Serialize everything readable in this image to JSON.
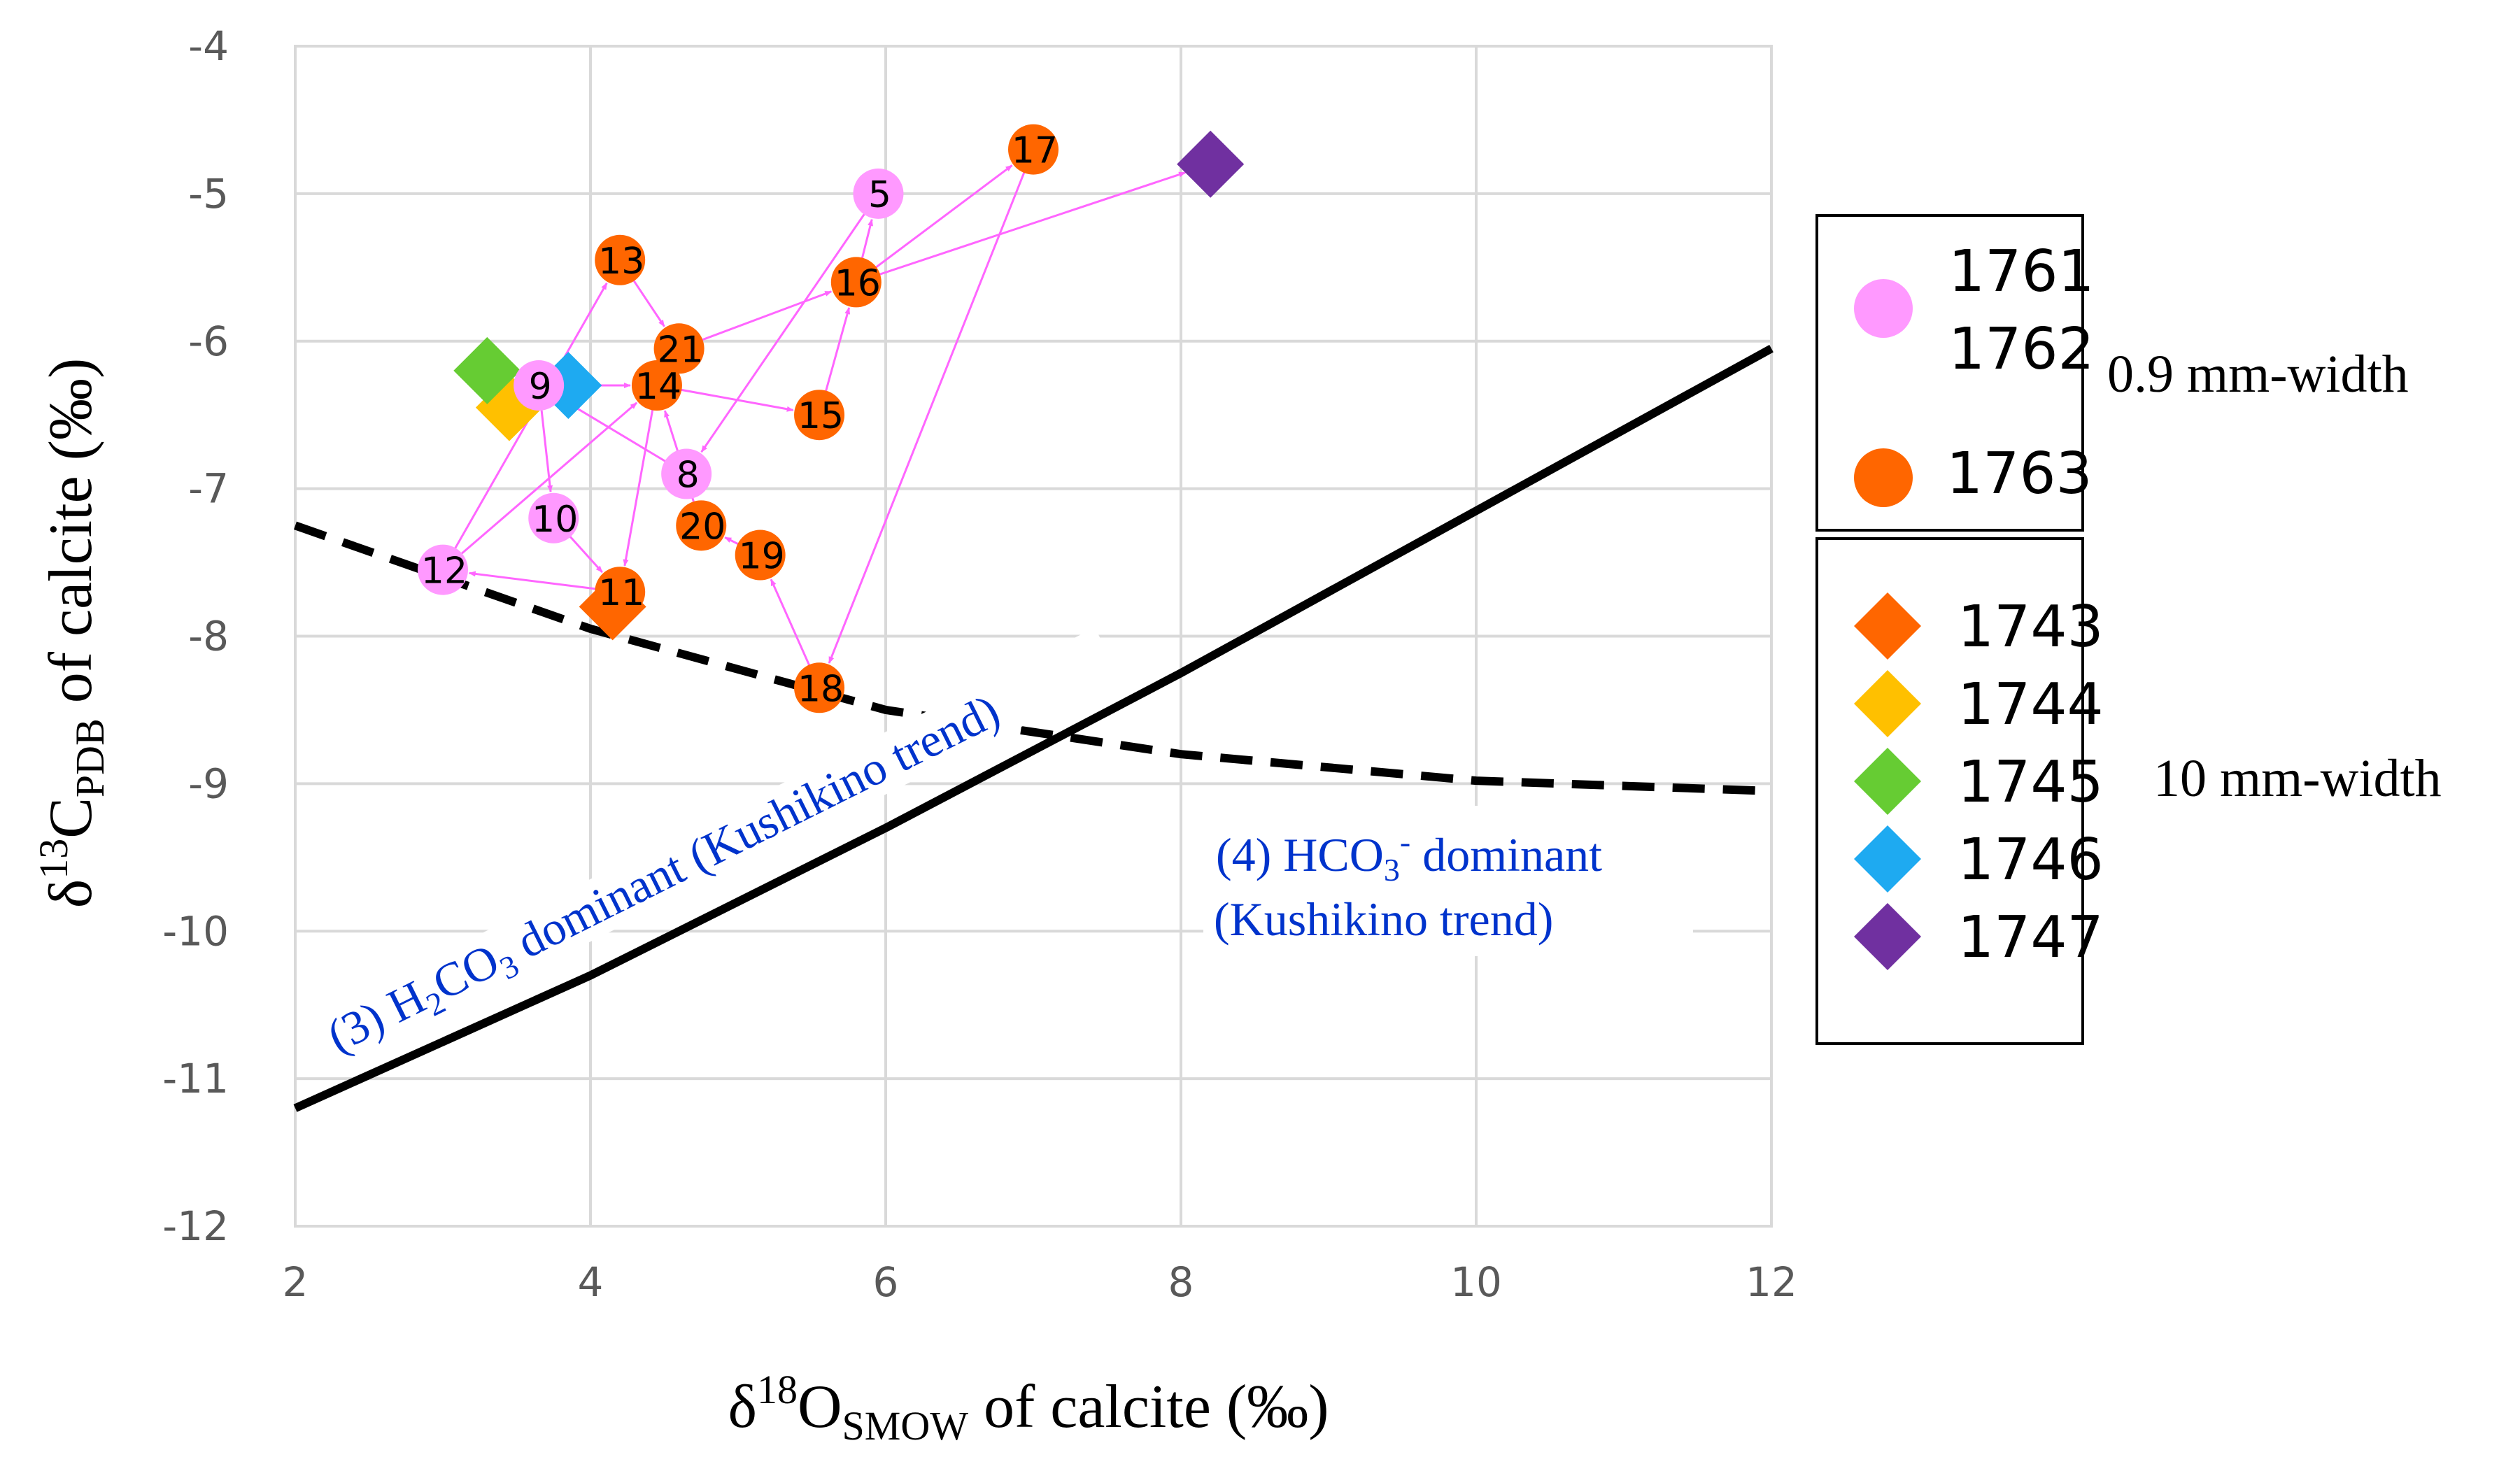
{
  "chart_data": {
    "type": "scatter",
    "xlabel": {
      "main": "δ",
      "sup": "18",
      "mid": "O",
      "sub": "SMOW",
      "tail": " of calcite (‰)"
    },
    "ylabel": {
      "main": "δ",
      "sup": "13",
      "mid": "C",
      "sub": "PDB",
      "tail": " of calcite (‰)"
    },
    "xlim": [
      2,
      12
    ],
    "ylim": [
      -12,
      -4
    ],
    "xticks": [
      "2",
      "4",
      "6",
      "8",
      "10",
      "12"
    ],
    "yticks": [
      "-12",
      "-11",
      "-10",
      "-9",
      "-8",
      "-7",
      "-6",
      "-5",
      "-4"
    ],
    "grid": true,
    "colors": {
      "pink": "#ff99ff",
      "orange": "#ff6600",
      "d1743": "#ff6600",
      "d1744": "#ffc000",
      "d1745": "#66cc33",
      "d1746": "#1eaaf1",
      "d1747": "#7030a0",
      "arrow": "#ff66ff",
      "annotation": "#0033cc",
      "grid": "#d9d9d9"
    },
    "points_0_9mm": [
      {
        "label": "5",
        "x": 5.95,
        "y": -5.0,
        "group": "1761-1762"
      },
      {
        "label": "8",
        "x": 4.65,
        "y": -6.9,
        "group": "1761-1762"
      },
      {
        "label": "9",
        "x": 3.65,
        "y": -6.3,
        "group": "1761-1762"
      },
      {
        "label": "10",
        "x": 3.75,
        "y": -7.2,
        "group": "1761-1762"
      },
      {
        "label": "12",
        "x": 3.0,
        "y": -7.55,
        "group": "1761-1762"
      },
      {
        "label": "11",
        "x": 4.2,
        "y": -7.7,
        "group": "1763"
      },
      {
        "label": "13",
        "x": 4.2,
        "y": -5.45,
        "group": "1763"
      },
      {
        "label": "14",
        "x": 4.45,
        "y": -6.3,
        "group": "1763"
      },
      {
        "label": "15",
        "x": 5.55,
        "y": -6.5,
        "group": "1763"
      },
      {
        "label": "16",
        "x": 5.8,
        "y": -5.6,
        "group": "1763"
      },
      {
        "label": "17",
        "x": 7.0,
        "y": -4.7,
        "group": "1763"
      },
      {
        "label": "18",
        "x": 5.55,
        "y": -8.35,
        "group": "1763"
      },
      {
        "label": "19",
        "x": 5.15,
        "y": -7.45,
        "group": "1763"
      },
      {
        "label": "20",
        "x": 4.75,
        "y": -7.25,
        "group": "1763"
      },
      {
        "label": "21",
        "x": 4.6,
        "y": -6.05,
        "group": "1763"
      }
    ],
    "points_10mm": [
      {
        "name": "1743",
        "x": 4.15,
        "y": -7.8
      },
      {
        "name": "1744",
        "x": 3.45,
        "y": -6.45
      },
      {
        "name": "1745",
        "x": 3.3,
        "y": -6.2
      },
      {
        "name": "1746",
        "x": 3.85,
        "y": -6.3
      },
      {
        "name": "1747",
        "x": 8.2,
        "y": -4.8
      }
    ],
    "arrows": [
      [
        "12",
        "13"
      ],
      [
        "13",
        "21"
      ],
      [
        "21",
        "16"
      ],
      [
        "16",
        "5"
      ],
      [
        "5",
        "8"
      ],
      [
        "8",
        "9"
      ],
      [
        "9",
        "10"
      ],
      [
        "10",
        "11"
      ],
      [
        "11",
        "12"
      ],
      [
        "12",
        "14"
      ],
      [
        "14",
        "15"
      ],
      [
        "15",
        "16"
      ],
      [
        "16",
        "17"
      ],
      [
        "17",
        "18"
      ],
      [
        "18",
        "19"
      ],
      [
        "19",
        "20"
      ],
      [
        "20",
        "14"
      ],
      [
        "14",
        "11"
      ],
      [
        "9",
        "14"
      ],
      [
        "16",
        "1747"
      ]
    ],
    "lines": [
      {
        "name": "H2CO3 dominant (Kushikino trend)",
        "style": "solid",
        "x": [
          2,
          4,
          6,
          8,
          10,
          12
        ],
        "y": [
          -11.2,
          -10.3,
          -9.3,
          -8.25,
          -7.15,
          -6.05
        ]
      },
      {
        "name": "HCO3- dominant (Kushikino trend)",
        "style": "dashed",
        "x": [
          2,
          4,
          6,
          8,
          10,
          12
        ],
        "y": [
          -7.25,
          -7.95,
          -8.5,
          -8.8,
          -8.98,
          -9.05
        ]
      }
    ],
    "annotations": {
      "line3": {
        "pre": "(3) H",
        "s1": "2",
        "mid": "CO",
        "s2": "3",
        "post": " dominant (Kushikino trend)"
      },
      "line4a": {
        "pre": "(4) HCO",
        "s1": "3",
        "sup": "-",
        "post": " dominant"
      },
      "line4b": "(Kushikino trend)"
    },
    "legend": {
      "box1": [
        "1761",
        "1762",
        "1763"
      ],
      "box1_note": "0.9 mm-width",
      "box2": [
        "1743",
        "1744",
        "1745",
        "1746",
        "1747"
      ],
      "box2_note": "10 mm-width"
    }
  }
}
